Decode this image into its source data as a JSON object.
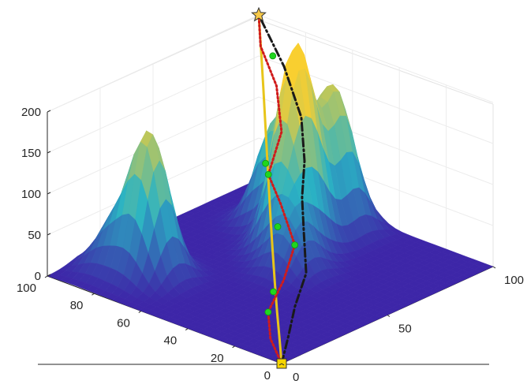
{
  "chart_data": {
    "type": "surface",
    "title": "",
    "xlabel": "",
    "ylabel": "",
    "zlabel": "",
    "xlim": [
      0,
      100
    ],
    "ylim": [
      0,
      100
    ],
    "zlim": [
      0,
      200
    ],
    "x_ticks": [
      "0",
      "50",
      "100"
    ],
    "y_ticks": [
      "0",
      "20",
      "40",
      "60",
      "80",
      "100"
    ],
    "z_ticks": [
      "0",
      "50",
      "100",
      "150",
      "200"
    ],
    "grid": true,
    "colormap": "parula",
    "colors": {
      "low": "#3d26a8",
      "mid": "#2ab3c4",
      "high": "#f9cf30",
      "path_solid": "#e8c51a",
      "path_dotted": "#d01b1b",
      "path_dashdot": "#1a1a1a",
      "waypoint": "#1fd61f",
      "start_marker": "#f5d400",
      "goal_marker": "#f7c948"
    },
    "terrain_peaks": [
      {
        "x": 22,
        "y": 76,
        "height": 170
      },
      {
        "x": 18,
        "y": 88,
        "height": 52
      },
      {
        "x": 55,
        "y": 45,
        "height": 65
      },
      {
        "x": 65,
        "y": 55,
        "height": 160
      },
      {
        "x": 73,
        "y": 57,
        "height": 145
      },
      {
        "x": 88,
        "y": 56,
        "height": 150
      },
      {
        "x": 78,
        "y": 73,
        "height": 120
      },
      {
        "x": 92,
        "y": 68,
        "height": 95
      }
    ],
    "start": {
      "x": 0,
      "y": 0,
      "z": 0,
      "marker": "square"
    },
    "goal": {
      "x": 100,
      "y": 100,
      "z": 200,
      "marker": "star"
    },
    "series": [
      {
        "style": "solid",
        "points": [
          [
            0,
            0,
            0
          ],
          [
            10,
            10,
            10
          ],
          [
            20,
            20,
            18
          ],
          [
            30,
            30,
            32
          ],
          [
            40,
            40,
            50
          ],
          [
            50,
            50,
            72
          ],
          [
            60,
            60,
            100
          ],
          [
            70,
            70,
            128
          ],
          [
            80,
            80,
            156
          ],
          [
            90,
            90,
            180
          ],
          [
            100,
            100,
            200
          ]
        ]
      },
      {
        "style": "dotted",
        "points": [
          [
            0,
            0,
            0
          ],
          [
            8,
            12,
            8
          ],
          [
            18,
            22,
            18
          ],
          [
            32,
            28,
            34
          ],
          [
            45,
            35,
            54
          ],
          [
            55,
            50,
            76
          ],
          [
            58,
            58,
            100
          ],
          [
            72,
            65,
            128
          ],
          [
            84,
            78,
            156
          ],
          [
            92,
            92,
            180
          ],
          [
            100,
            100,
            200
          ]
        ]
      },
      {
        "style": "dash-dot",
        "points": [
          [
            0,
            0,
            0
          ],
          [
            12,
            8,
            10
          ],
          [
            24,
            16,
            24
          ],
          [
            36,
            22,
            44
          ],
          [
            46,
            32,
            70
          ],
          [
            54,
            40,
            96
          ],
          [
            64,
            48,
            120
          ],
          [
            78,
            62,
            142
          ],
          [
            92,
            82,
            166
          ],
          [
            100,
            100,
            200
          ]
        ]
      }
    ],
    "waypoints": [
      [
        18,
        22,
        18
      ],
      [
        26,
        27,
        28
      ],
      [
        45,
        35,
        54
      ],
      [
        48,
        45,
        62
      ],
      [
        58,
        58,
        100
      ],
      [
        60,
        61,
        108
      ],
      [
        90,
        85,
        178
      ]
    ]
  }
}
